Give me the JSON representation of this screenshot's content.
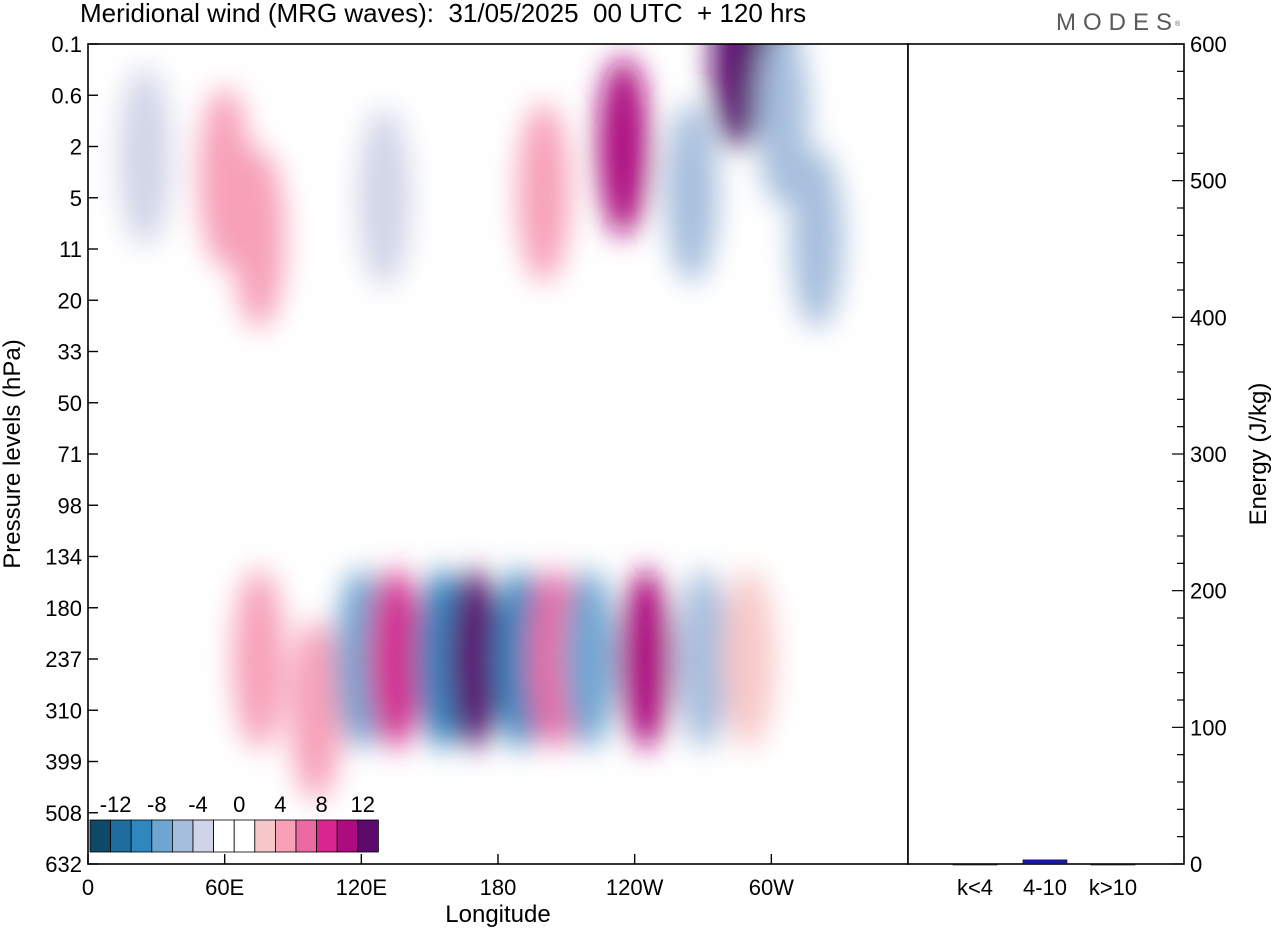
{
  "title": "Meridional wind (MRG waves):  31/05/2025  00 UTC  + 120 hrs",
  "logo": "MODES",
  "logo_mark": "®",
  "chart_data": [
    {
      "type": "heatmap",
      "xlabel": "Longitude",
      "ylabel": "Pressure levels (hPa)",
      "x_ticks": [
        "0",
        "60E",
        "120E",
        "180",
        "120W",
        "60W"
      ],
      "y_ticks": [
        "0.1",
        "0.6",
        "2",
        "5",
        "11",
        "20",
        "33",
        "50",
        "71",
        "98",
        "134",
        "180",
        "237",
        "310",
        "399",
        "508",
        "632"
      ],
      "colorbar": {
        "labels": [
          "-12",
          "-8",
          "-4",
          "0",
          "4",
          "8",
          "12"
        ],
        "colors": [
          "#0e4a67",
          "#1e6d9c",
          "#2f87c0",
          "#6ea6d2",
          "#a6bedd",
          "#d0d4e7",
          "#ffffff",
          "#ffffff",
          "#f8c8c8",
          "#f7a0b8",
          "#ec6aa4",
          "#d8258f",
          "#ad0c80",
          "#5c0a6e"
        ]
      },
      "cells": [
        {
          "lon": 25,
          "lev": 2.2,
          "v": -4
        },
        {
          "lon": 60,
          "lev": 2.6,
          "v": 5
        },
        {
          "lon": 130,
          "lev": 3.0,
          "v": -4
        },
        {
          "lon": 200,
          "lev": 2.9,
          "v": 5
        },
        {
          "lon": 265,
          "lev": 2.9,
          "v": -6
        },
        {
          "lon": 300,
          "lev": 0.3,
          "v": -14
        },
        {
          "lon": 285,
          "lev": 0.3,
          "v": 13
        },
        {
          "lon": 305,
          "lev": 1.4,
          "v": -6
        },
        {
          "lon": 235,
          "lev": 2.0,
          "v": 10
        },
        {
          "lon": 75,
          "lev": 3.8,
          "v": 5
        },
        {
          "lon": 320,
          "lev": 3.8,
          "v": -6
        },
        {
          "lon": 75,
          "lev": 12.0,
          "v": 4
        },
        {
          "lon": 100,
          "lev": 13.0,
          "v": 4
        },
        {
          "lon": 120,
          "lev": 12.0,
          "v": -7
        },
        {
          "lon": 135,
          "lev": 12.0,
          "v": 9
        },
        {
          "lon": 155,
          "lev": 12.0,
          "v": -10
        },
        {
          "lon": 170,
          "lev": 12.0,
          "v": 15
        },
        {
          "lon": 190,
          "lev": 12.0,
          "v": -9
        },
        {
          "lon": 205,
          "lev": 12.0,
          "v": 7
        },
        {
          "lon": 220,
          "lev": 12.0,
          "v": -8
        },
        {
          "lon": 245,
          "lev": 12.0,
          "v": 10
        },
        {
          "lon": 270,
          "lev": 12.0,
          "v": -5
        },
        {
          "lon": 290,
          "lev": 12.0,
          "v": 3
        }
      ]
    },
    {
      "type": "bar",
      "ylabel": "Energy (J/kg)",
      "categories": [
        "k<4",
        "4-10",
        "k>10"
      ],
      "values": [
        0,
        3,
        0
      ],
      "ylim": [
        0,
        600
      ],
      "y_ticks": [
        "0",
        "100",
        "200",
        "300",
        "400",
        "500",
        "600"
      ],
      "bar_color": "#1a1aa8"
    }
  ]
}
